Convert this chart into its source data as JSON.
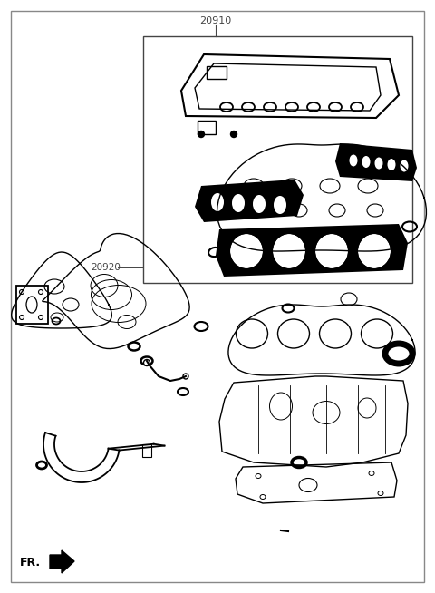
{
  "title": "20910",
  "label_20920": "20920",
  "label_fr": "FR.",
  "bg_color": "#ffffff",
  "line_color": "#000000",
  "fig_width": 4.8,
  "fig_height": 6.54,
  "dpi": 100
}
